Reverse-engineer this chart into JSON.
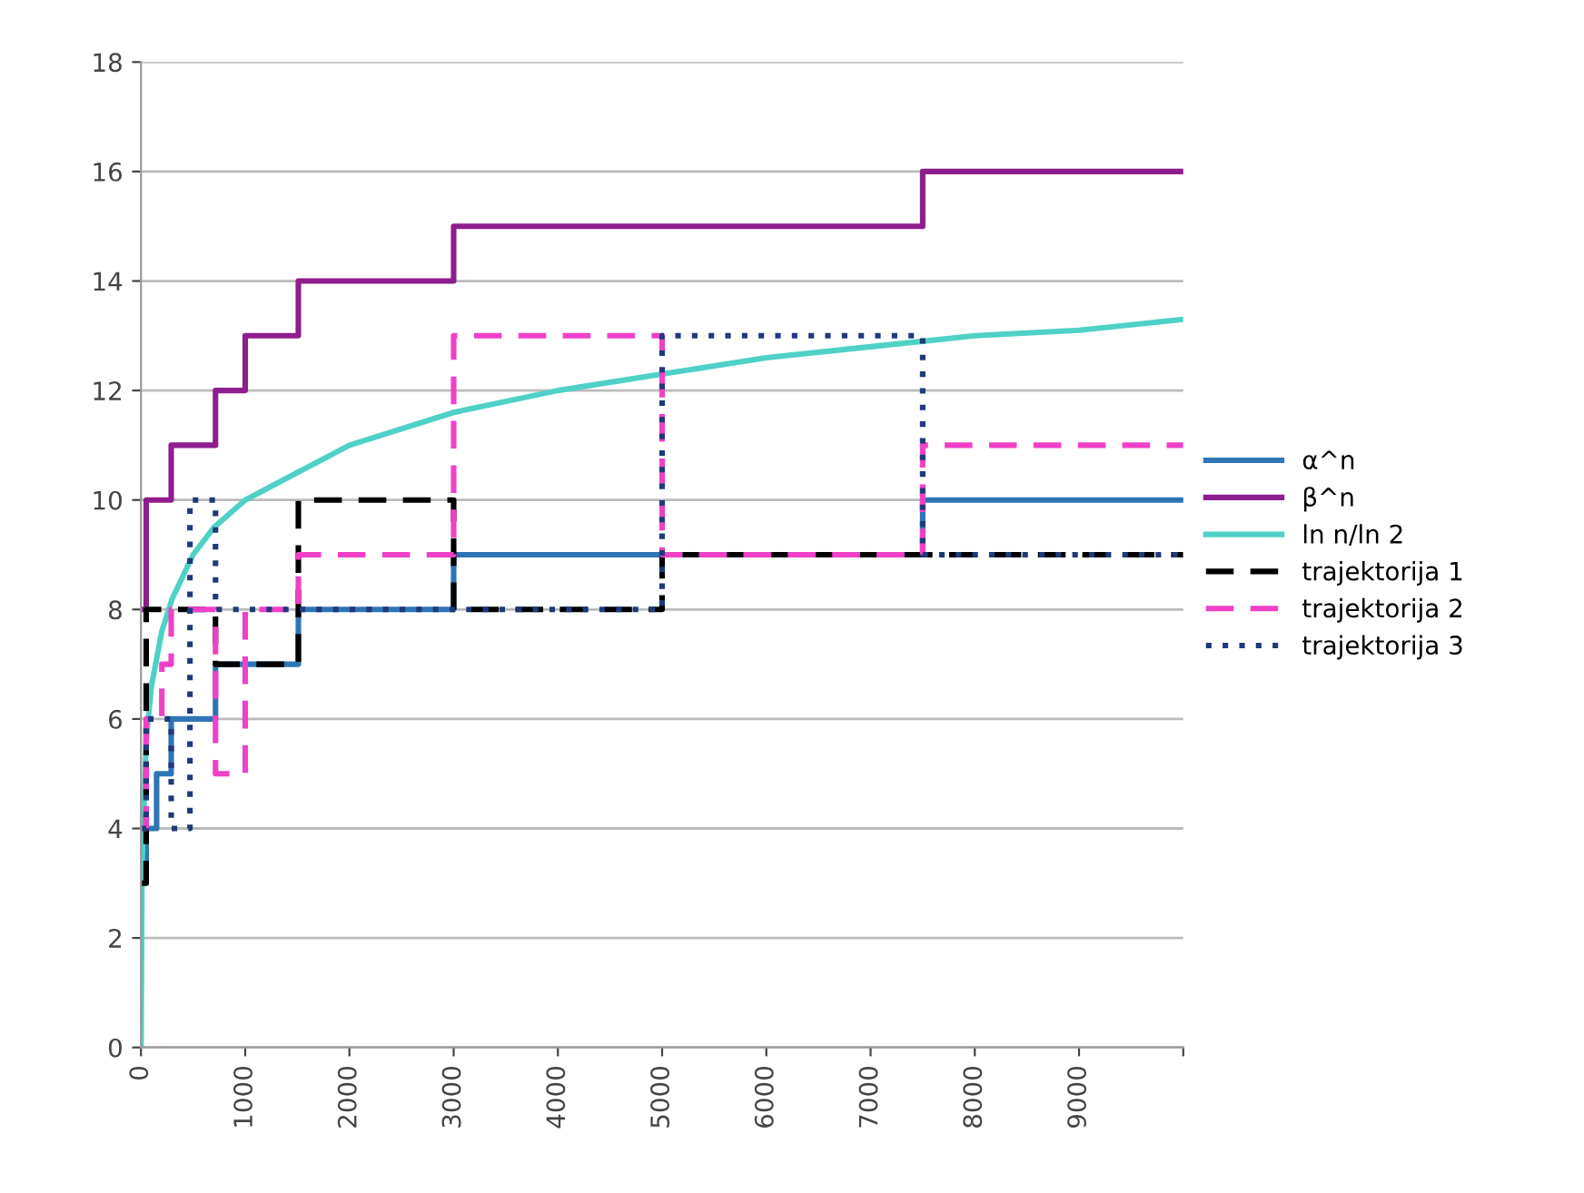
{
  "chart_data": {
    "type": "step",
    "xlim": [
      0,
      10000
    ],
    "ylim": [
      0,
      18
    ],
    "xticks": [
      0,
      1000,
      2000,
      3000,
      4000,
      5000,
      6000,
      7000,
      8000,
      9000,
      {
        "value": 10000,
        "label": null
      }
    ],
    "yticks": [
      0,
      2,
      4,
      6,
      8,
      10,
      12,
      14,
      16,
      18
    ],
    "grid": "y",
    "legend": "right",
    "series": [
      {
        "name": "α^n",
        "color": "#2e75b6",
        "line_style": "solid",
        "x": [
          0,
          50,
          150,
          290,
          715,
          1510,
          3000,
          7500,
          10000
        ],
        "values": [
          3,
          4,
          5,
          6,
          7,
          8,
          9,
          10,
          10
        ]
      },
      {
        "name": "β^n",
        "color": "#8e1d8e",
        "line_style": "solid",
        "x": [
          0,
          50,
          290,
          715,
          1000,
          1510,
          3000,
          7500,
          10000
        ],
        "values": [
          8,
          10,
          11,
          12,
          13,
          14,
          15,
          16,
          16
        ]
      },
      {
        "name": "ln n/ln 2",
        "type": "line",
        "color": "#4fd1c5",
        "line_style": "solid",
        "x": [
          1,
          10,
          50,
          100,
          200,
          300,
          500,
          700,
          1000,
          1500,
          2000,
          3000,
          4000,
          5000,
          6000,
          7000,
          8000,
          9000,
          10000
        ],
        "values": [
          0,
          3.3,
          5.6,
          6.6,
          7.6,
          8.2,
          9.0,
          9.5,
          10.0,
          10.5,
          11.0,
          11.6,
          12.0,
          12.3,
          12.6,
          12.8,
          13.0,
          13.1,
          13.3
        ]
      },
      {
        "name": "trajektorija 1",
        "color": "#000000",
        "line_style": "dashed",
        "x": [
          0,
          50,
          715,
          1510,
          3000,
          5000,
          10000
        ],
        "values": [
          3,
          8,
          7,
          10,
          8,
          9,
          9
        ]
      },
      {
        "name": "trajektorija 2",
        "color": "#f040c8",
        "line_style": "dashed",
        "x": [
          0,
          50,
          200,
          290,
          715,
          1000,
          1510,
          3000,
          5000,
          7500,
          10000
        ],
        "values": [
          4,
          6,
          7,
          8,
          5,
          8,
          9,
          13,
          9,
          11,
          11
        ]
      },
      {
        "name": "trajektorija 3",
        "color": "#1f3a7a",
        "line_style": "dotted",
        "x": [
          0,
          50,
          290,
          470,
          715,
          5000,
          7500,
          10000
        ],
        "values": [
          4,
          6,
          4,
          10,
          8,
          13,
          9,
          9
        ]
      }
    ]
  }
}
